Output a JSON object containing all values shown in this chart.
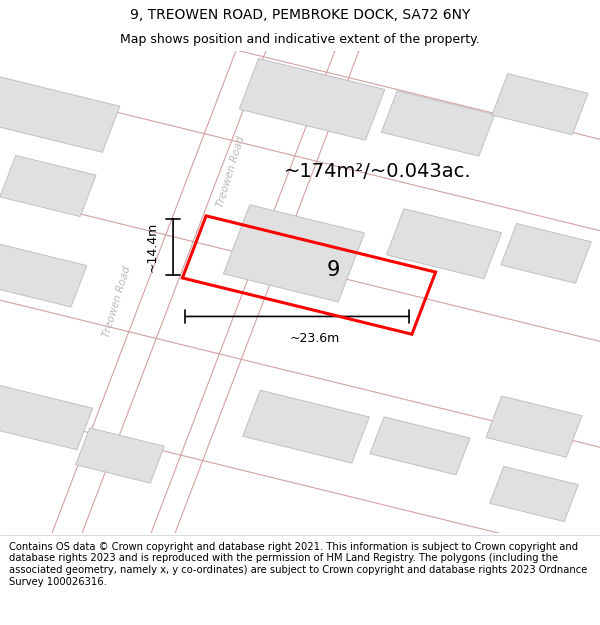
{
  "title": "9, TREOWEN ROAD, PEMBROKE DOCK, SA72 6NY",
  "subtitle": "Map shows position and indicative extent of the property.",
  "footer": "Contains OS data © Crown copyright and database right 2021. This information is subject to Crown copyright and database rights 2023 and is reproduced with the permission of HM Land Registry. The polygons (including the associated geometry, namely x, y co-ordinates) are subject to Crown copyright and database rights 2023 Ordnance Survey 100026316.",
  "area_label": "~174m²/~0.043ac.",
  "number_label": "9",
  "width_label": "~23.6m",
  "height_label": "~14.4m",
  "map_bg": "#f0f0f0",
  "building_fill": "#e0e0e0",
  "building_edge": "#c0c0c0",
  "road_color": "#d4a0a0",
  "road_label_color": "#b8b8b8",
  "title_fontsize": 10,
  "subtitle_fontsize": 9,
  "footer_fontsize": 7.2,
  "area_fontsize": 14,
  "number_fontsize": 15,
  "dim_fontsize": 9
}
